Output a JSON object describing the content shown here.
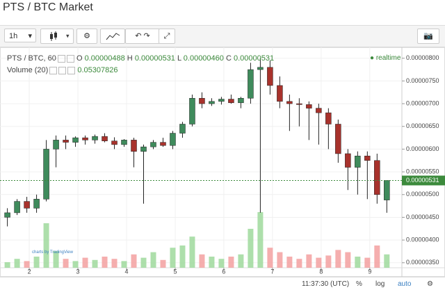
{
  "header": {
    "title": "PTS / BTC Market"
  },
  "toolbar": {
    "interval": "1h"
  },
  "chart_data": {
    "type": "candlestick",
    "legend": {
      "symbol": "PTS / BTC, 60",
      "fields": [
        {
          "key": "O",
          "value": "0.00000488"
        },
        {
          "key": "H",
          "value": "0.00000531"
        },
        {
          "key": "L",
          "value": "0.00000460"
        },
        {
          "key": "C",
          "value": "0.00000531"
        }
      ],
      "status": "realtime"
    },
    "volume_legend": {
      "name": "Volume (20)",
      "value": "0.05307826"
    },
    "watermark": "charts by TradingView",
    "x": [
      1.55,
      1.75,
      1.95,
      2.15,
      2.35,
      2.55,
      2.75,
      2.95,
      3.15,
      3.35,
      3.55,
      3.75,
      3.95,
      4.15,
      4.35,
      4.55,
      4.75,
      4.95,
      5.15,
      5.35,
      5.55,
      5.75,
      5.95,
      6.15,
      6.35,
      6.55,
      6.75,
      6.95,
      7.15,
      7.35,
      7.55,
      7.75,
      7.95,
      8.15,
      8.35,
      8.55,
      8.75,
      8.95,
      9.15,
      9.35
    ],
    "open": [
      4.5e-06,
      4.6e-06,
      4.85e-06,
      4.7e-06,
      4.9e-06,
      6e-06,
      6.2e-06,
      6.15e-06,
      6.25e-06,
      6.2e-06,
      6.28e-06,
      6.18e-06,
      6.1e-06,
      6.2e-06,
      5.95e-06,
      6.05e-06,
      6.15e-06,
      6.08e-06,
      6.35e-06,
      6.55e-06,
      7.12e-06,
      7e-06,
      7.05e-06,
      7.1e-06,
      7.02e-06,
      7.12e-06,
      7.75e-06,
      7.8e-06,
      7.4e-06,
      7.05e-06,
      7e-06,
      6.98e-06,
      6.9e-06,
      6.8e-06,
      6.55e-06,
      5.9e-06,
      5.6e-06,
      5.85e-06,
      5.75e-06,
      4.88e-06
    ],
    "high": [
      4.7e-06,
      4.9e-06,
      4.95e-06,
      5e-06,
      6.2e-06,
      6.3e-06,
      6.3e-06,
      6.28e-06,
      6.3e-06,
      6.32e-06,
      6.35e-06,
      6.26e-06,
      6.22e-06,
      6.25e-06,
      6.1e-06,
      6.2e-06,
      6.25e-06,
      6.4e-06,
      6.6e-06,
      7.2e-06,
      7.25e-06,
      7.12e-06,
      7.15e-06,
      7.2e-06,
      7.15e-06,
      7.9e-06,
      8e-06,
      7.95e-06,
      7.6e-06,
      7.2e-06,
      7.12e-06,
      7.05e-06,
      7e-06,
      6.9e-06,
      6.65e-06,
      6e-06,
      5.95e-06,
      5.95e-06,
      5.9e-06,
      5.31e-06
    ],
    "low": [
      4.3e-06,
      4.55e-06,
      4.6e-06,
      4.6e-06,
      4.85e-06,
      5.6e-06,
      6e-06,
      6.05e-06,
      6.1e-06,
      6.12e-06,
      6.15e-06,
      6e-06,
      6.05e-06,
      5.6e-06,
      4.8e-06,
      6e-06,
      6.05e-06,
      6e-06,
      6.25e-06,
      6.5e-06,
      6.9e-06,
      6.95e-06,
      6.98e-06,
      7e-06,
      6.9e-06,
      7e-06,
      4.6e-06,
      7.2e-06,
      6.9e-06,
      6.4e-06,
      6.5e-06,
      6.2e-06,
      6.1e-06,
      6e-06,
      5.7e-06,
      5.1e-06,
      5e-06,
      4.9e-06,
      4.8e-06,
      4.6e-06
    ],
    "close": [
      4.6e-06,
      4.85e-06,
      4.7e-06,
      4.9e-06,
      6e-06,
      6.2e-06,
      6.15e-06,
      6.25e-06,
      6.2e-06,
      6.28e-06,
      6.18e-06,
      6.1e-06,
      6.2e-06,
      5.95e-06,
      6.05e-06,
      6.15e-06,
      6.08e-06,
      6.35e-06,
      6.55e-06,
      7.12e-06,
      7e-06,
      7.05e-06,
      7.1e-06,
      7.02e-06,
      7.12e-06,
      7.75e-06,
      7.8e-06,
      7.4e-06,
      7.05e-06,
      7e-06,
      6.98e-06,
      6.9e-06,
      6.8e-06,
      6.55e-06,
      5.9e-06,
      5.6e-06,
      5.85e-06,
      5.75e-06,
      5e-06,
      5.31e-06
    ],
    "volume": [
      5,
      8,
      6,
      10,
      40,
      15,
      8,
      6,
      9,
      7,
      10,
      8,
      6,
      12,
      9,
      14,
      7,
      18,
      20,
      28,
      12,
      10,
      8,
      10,
      12,
      35,
      50,
      18,
      14,
      10,
      8,
      12,
      9,
      11,
      16,
      14,
      10,
      9,
      20,
      12
    ],
    "up_color": "#3f8b5c",
    "down_color": "#a8322c",
    "volume_up_color": "#9fd99c",
    "volume_down_color": "#f3a0a0",
    "xlim": [
      1.47,
      9.66
    ],
    "xticks": [
      2,
      3,
      4,
      5,
      6,
      7,
      8,
      9
    ],
    "ylim": [
      3.39e-06,
      8.21e-06
    ],
    "yticks": [
      {
        "value": 3.5e-06,
        "label": "0.00000350"
      },
      {
        "value": 4e-06,
        "label": "0.00000400"
      },
      {
        "value": 4.5e-06,
        "label": "0.00000450"
      },
      {
        "value": 5e-06,
        "label": "0.00000500"
      },
      {
        "value": 5.5e-06,
        "label": "0.00000550"
      },
      {
        "value": 6e-06,
        "label": "0.00000600"
      },
      {
        "value": 6.5e-06,
        "label": "0.00000650"
      },
      {
        "value": 7e-06,
        "label": "0.00000700"
      },
      {
        "value": 7.5e-06,
        "label": "0.00000750"
      },
      {
        "value": 8e-06,
        "label": "0.00000800"
      }
    ],
    "grid": true,
    "last_price": {
      "value": 5.31e-06,
      "label": "0.00000531"
    }
  },
  "status_bar": {
    "time": "11:37:30 (UTC)",
    "percent": "%",
    "log": "log",
    "auto": "auto"
  }
}
